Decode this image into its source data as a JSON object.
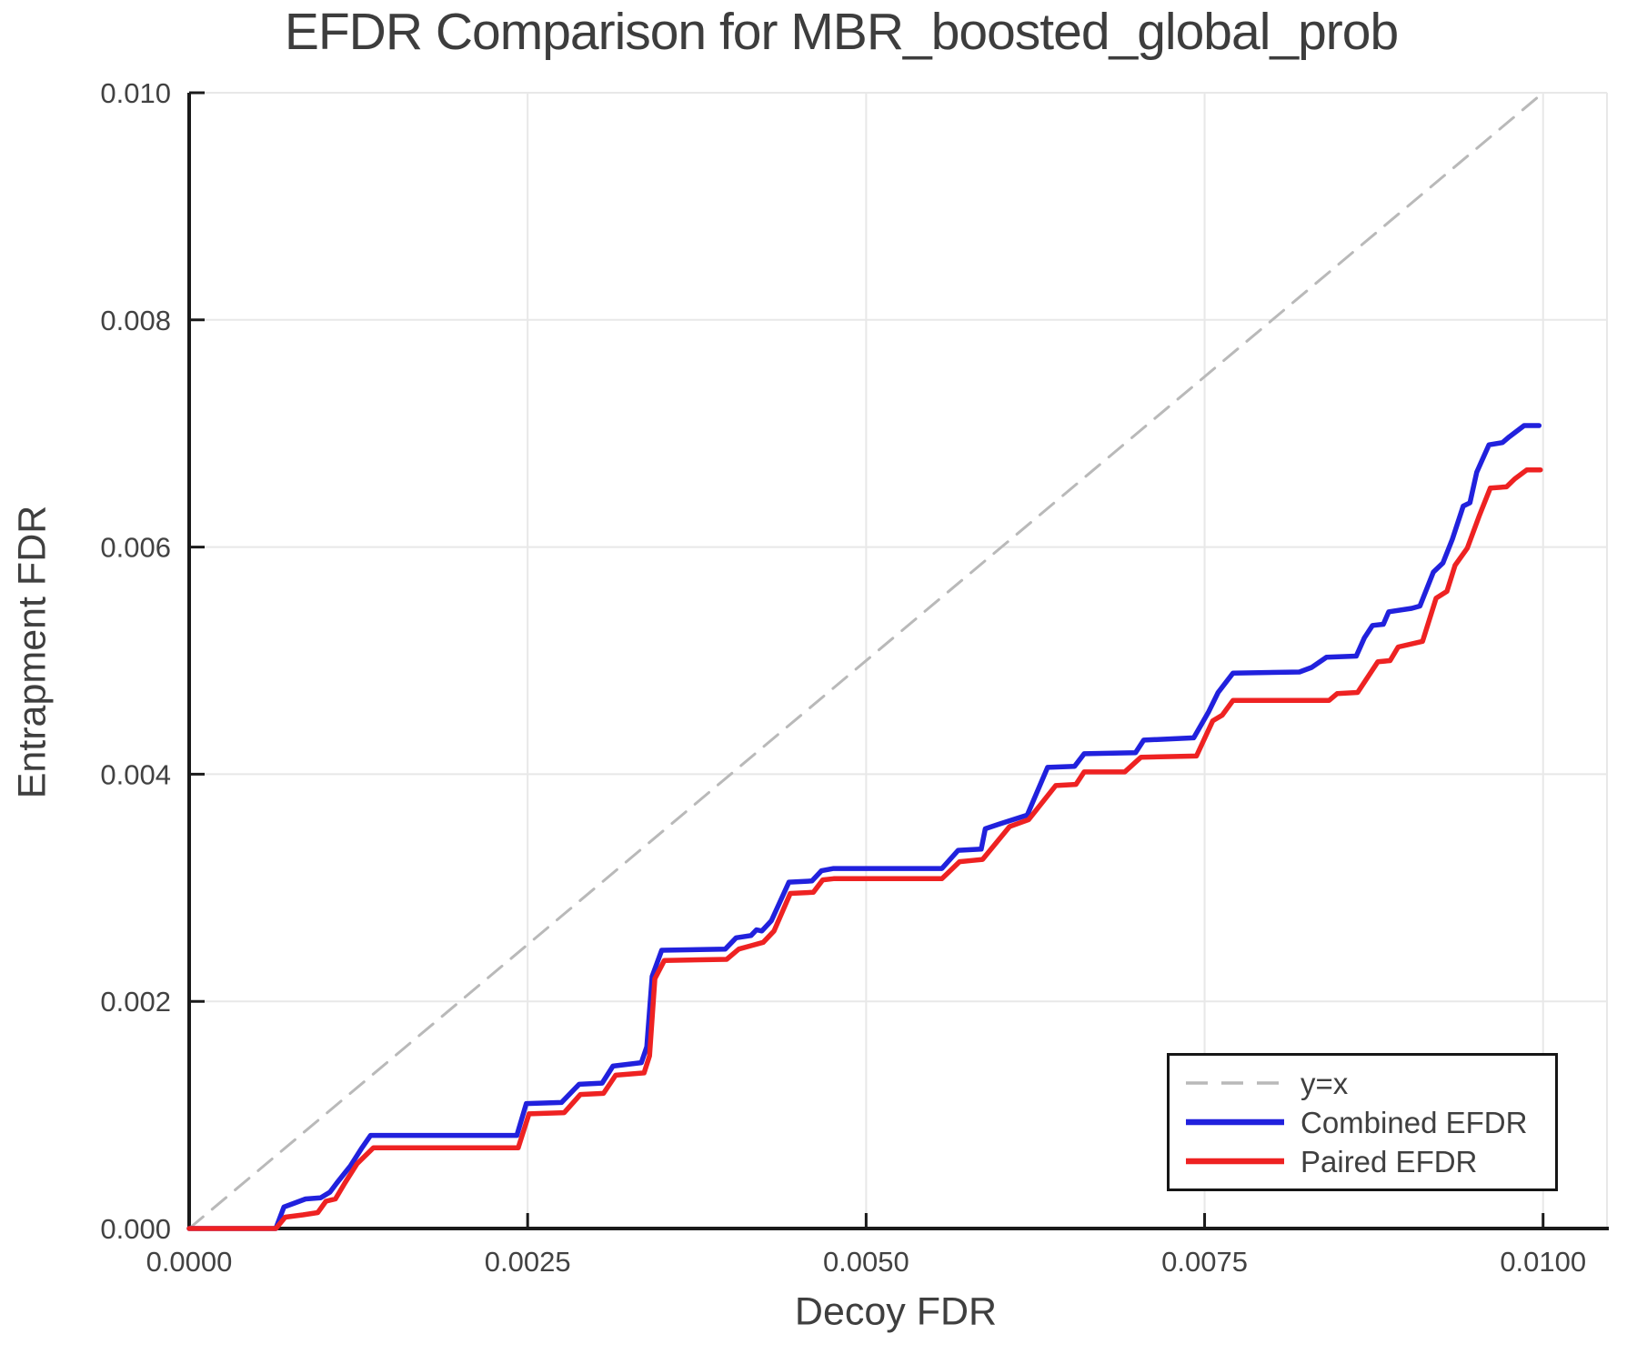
{
  "chart_data": {
    "type": "line",
    "title": "EFDR Comparison for MBR_boosted_global_prob",
    "xlabel": "Decoy FDR",
    "ylabel": "Entrapment FDR",
    "xlim": [
      0,
      0.010472
    ],
    "ylim": [
      0,
      0.01
    ],
    "grid": true,
    "xticks": {
      "values": [
        0,
        0.0025,
        0.005,
        0.0075,
        0.01
      ],
      "labels": [
        "0.0000",
        "0.0025",
        "0.0050",
        "0.0075",
        "0.0100"
      ]
    },
    "yticks": {
      "values": [
        0,
        0.002,
        0.004,
        0.006,
        0.008,
        0.01
      ],
      "labels": [
        "0.000",
        "0.002",
        "0.004",
        "0.006",
        "0.008",
        "0.010"
      ]
    },
    "legend": {
      "position": "lower right"
    },
    "series": [
      {
        "name": "y=x",
        "role": "reference-diagonal",
        "color": "#b9b9b9",
        "dash": [
          20,
          13
        ],
        "width": 3,
        "points": [
          [
            0,
            0
          ],
          [
            0.01,
            0.01
          ]
        ]
      },
      {
        "name": "Combined EFDR",
        "role": "data",
        "color": "#2121dd",
        "dash": null,
        "width": 5.5,
        "points": [
          [
            0.0,
            0.0
          ],
          [
            0.00064,
            0.0
          ],
          [
            0.0007,
            0.00019
          ],
          [
            0.00077,
            0.00022
          ],
          [
            0.00086,
            0.00026
          ],
          [
            0.00097,
            0.00027
          ],
          [
            0.00104,
            0.00032
          ],
          [
            0.00109,
            0.0004
          ],
          [
            0.00119,
            0.00055
          ],
          [
            0.00127,
            0.0007
          ],
          [
            0.00134,
            0.00082
          ],
          [
            0.00242,
            0.00082
          ],
          [
            0.00249,
            0.0011
          ],
          [
            0.00275,
            0.00111
          ],
          [
            0.00288,
            0.00127
          ],
          [
            0.00305,
            0.00128
          ],
          [
            0.00313,
            0.00143
          ],
          [
            0.00334,
            0.00146
          ],
          [
            0.00338,
            0.0016
          ],
          [
            0.00342,
            0.00222
          ],
          [
            0.00349,
            0.00245
          ],
          [
            0.00396,
            0.00246
          ],
          [
            0.00404,
            0.00256
          ],
          [
            0.00415,
            0.00258
          ],
          [
            0.00419,
            0.00263
          ],
          [
            0.00423,
            0.00262
          ],
          [
            0.0043,
            0.00271
          ],
          [
            0.00443,
            0.00305
          ],
          [
            0.0046,
            0.00306
          ],
          [
            0.00467,
            0.00315
          ],
          [
            0.00476,
            0.00317
          ],
          [
            0.00556,
            0.00317
          ],
          [
            0.00568,
            0.00333
          ],
          [
            0.00585,
            0.00334
          ],
          [
            0.00588,
            0.00352
          ],
          [
            0.00598,
            0.00356
          ],
          [
            0.00619,
            0.00364
          ],
          [
            0.00634,
            0.00406
          ],
          [
            0.00654,
            0.00407
          ],
          [
            0.00661,
            0.00418
          ],
          [
            0.00699,
            0.00419
          ],
          [
            0.00705,
            0.0043
          ],
          [
            0.00742,
            0.00432
          ],
          [
            0.00753,
            0.00455
          ],
          [
            0.0076,
            0.00472
          ],
          [
            0.00771,
            0.00489
          ],
          [
            0.0082,
            0.0049
          ],
          [
            0.00829,
            0.00494
          ],
          [
            0.0084,
            0.00503
          ],
          [
            0.00862,
            0.00504
          ],
          [
            0.00868,
            0.0052
          ],
          [
            0.00874,
            0.00531
          ],
          [
            0.00882,
            0.00532
          ],
          [
            0.00886,
            0.00543
          ],
          [
            0.00903,
            0.00546
          ],
          [
            0.00909,
            0.00548
          ],
          [
            0.00919,
            0.00578
          ],
          [
            0.00926,
            0.00586
          ],
          [
            0.00933,
            0.00607
          ],
          [
            0.00941,
            0.00636
          ],
          [
            0.00946,
            0.00639
          ],
          [
            0.00951,
            0.00666
          ],
          [
            0.0096,
            0.0069
          ],
          [
            0.0097,
            0.00692
          ],
          [
            0.00975,
            0.00697
          ],
          [
            0.00986,
            0.00707
          ],
          [
            0.00997,
            0.00707
          ]
        ]
      },
      {
        "name": "Paired EFDR",
        "role": "data",
        "color": "#ee2222",
        "dash": null,
        "width": 5.5,
        "points": [
          [
            0.0,
            0.0
          ],
          [
            0.00064,
            0.0
          ],
          [
            0.00071,
            0.0001
          ],
          [
            0.00084,
            0.00012
          ],
          [
            0.00095,
            0.00014
          ],
          [
            0.00101,
            0.00024
          ],
          [
            0.00108,
            0.00026
          ],
          [
            0.00115,
            0.0004
          ],
          [
            0.00124,
            0.00057
          ],
          [
            0.00136,
            0.00071
          ],
          [
            0.00243,
            0.00071
          ],
          [
            0.00251,
            0.00101
          ],
          [
            0.00277,
            0.00102
          ],
          [
            0.00289,
            0.00118
          ],
          [
            0.00306,
            0.00119
          ],
          [
            0.00315,
            0.00135
          ],
          [
            0.00336,
            0.00137
          ],
          [
            0.0034,
            0.00152
          ],
          [
            0.00344,
            0.0022
          ],
          [
            0.00351,
            0.00236
          ],
          [
            0.00397,
            0.00237
          ],
          [
            0.00406,
            0.00246
          ],
          [
            0.00415,
            0.00249
          ],
          [
            0.00424,
            0.00252
          ],
          [
            0.00432,
            0.00262
          ],
          [
            0.00444,
            0.00295
          ],
          [
            0.00461,
            0.00296
          ],
          [
            0.00468,
            0.00307
          ],
          [
            0.00476,
            0.00308
          ],
          [
            0.00556,
            0.00308
          ],
          [
            0.00569,
            0.00323
          ],
          [
            0.00578,
            0.00324
          ],
          [
            0.00586,
            0.00325
          ],
          [
            0.00606,
            0.00354
          ],
          [
            0.0062,
            0.0036
          ],
          [
            0.0064,
            0.0039
          ],
          [
            0.00655,
            0.00391
          ],
          [
            0.00661,
            0.00402
          ],
          [
            0.00691,
            0.00402
          ],
          [
            0.00703,
            0.00415
          ],
          [
            0.00744,
            0.00416
          ],
          [
            0.00756,
            0.00447
          ],
          [
            0.00763,
            0.00452
          ],
          [
            0.00771,
            0.00465
          ],
          [
            0.00842,
            0.00465
          ],
          [
            0.00848,
            0.00471
          ],
          [
            0.00863,
            0.00472
          ],
          [
            0.00878,
            0.00499
          ],
          [
            0.00887,
            0.005
          ],
          [
            0.00893,
            0.00512
          ],
          [
            0.00911,
            0.00517
          ],
          [
            0.00921,
            0.00555
          ],
          [
            0.00929,
            0.00561
          ],
          [
            0.00935,
            0.00584
          ],
          [
            0.00944,
            0.00599
          ],
          [
            0.00953,
            0.00628
          ],
          [
            0.00961,
            0.00652
          ],
          [
            0.00973,
            0.00653
          ],
          [
            0.00979,
            0.0066
          ],
          [
            0.00988,
            0.00668
          ],
          [
            0.00998,
            0.00668
          ]
        ]
      }
    ],
    "style": {
      "grid_color": "#e8e8e8",
      "spine_color": "#1a1a1a",
      "light_border_color": "#e8e8e8",
      "tick_label_color": "#424242",
      "text_color": "#3f3f3f"
    }
  }
}
